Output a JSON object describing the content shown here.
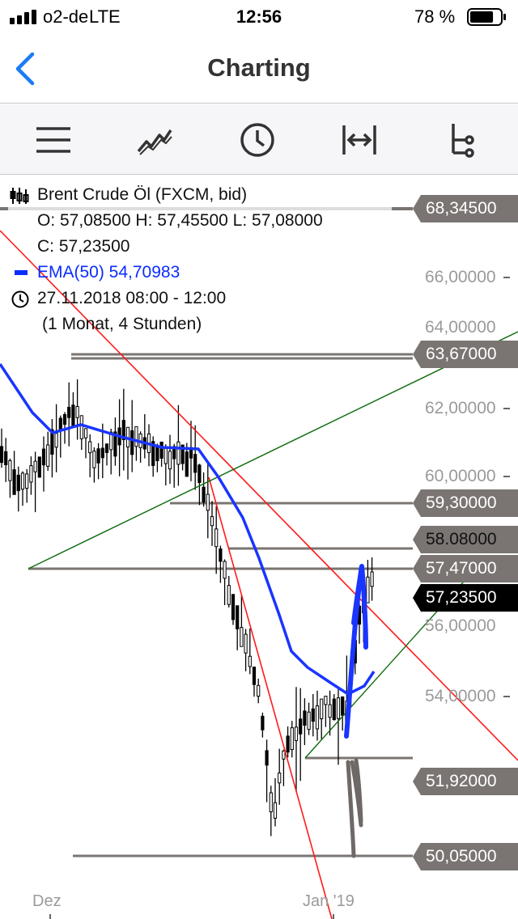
{
  "status_bar": {
    "carrier": "o2-de",
    "network": "LTE",
    "time": "12:56",
    "battery": "78 %",
    "battery_level": 0.78
  },
  "nav": {
    "title": "Charting",
    "back_icon": "chevron-left-icon"
  },
  "toolbar": {
    "icons": [
      "menu-icon",
      "indicator-line-icon",
      "clock-icon",
      "horizontal-range-icon",
      "tree-branch-icon"
    ]
  },
  "legend": {
    "instrument": "Brent Crude Öl (FXCM, bid)",
    "ohlc_line1": "O: 57,08500  H: 57,45500  L: 57,08000",
    "ohlc_line2": "C: 57,23500",
    "ema": "EMA(50)  54,70983",
    "ema_color": "#0a2cff",
    "datetime": "27.11.2018 08:00 - 12:00",
    "period": "(1 Monat, 4 Stunden)"
  },
  "axis": {
    "y_ticks": [
      "66,00000",
      "64,00000",
      "62,00000",
      "60,00000",
      "56,00000",
      "54,00000"
    ],
    "x_ticks": [
      "Dez",
      "Jan '19"
    ]
  },
  "price_labels": [
    "68,34500",
    "63,67000",
    "59,30000",
    "58.08000",
    "57,47000",
    "57,23500",
    "51,92000",
    "50,05000"
  ],
  "colors": {
    "accent": "#1a7cf5",
    "label_bg": "#7a7572",
    "trend_red": "#ff1a1a",
    "trend_green": "#0d6b0d",
    "ema": "#1a35ff"
  }
}
